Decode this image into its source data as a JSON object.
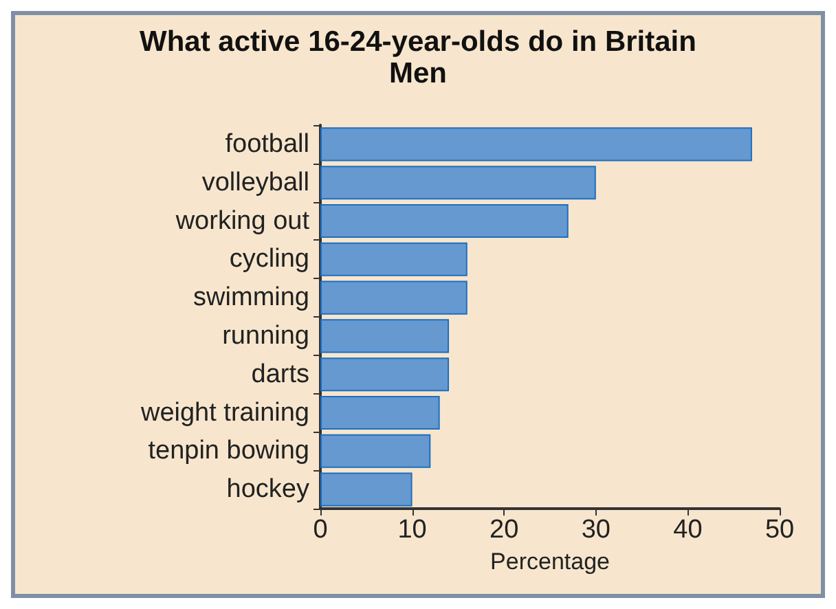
{
  "chart_data": {
    "type": "bar",
    "orientation": "horizontal",
    "title": "What active 16-24-year-olds do in Britain",
    "subtitle": "Men",
    "xlabel": "Percentage",
    "categories": [
      "football",
      "volleyball",
      "working out",
      "cycling",
      "swimming",
      "running",
      "darts",
      "weight training",
      "tenpin bowing",
      "hockey"
    ],
    "values": [
      47,
      30,
      27,
      16,
      16,
      14,
      14,
      13,
      12,
      10
    ],
    "color": "#6699d0",
    "xlim": [
      0,
      50
    ],
    "xticks": [
      0,
      10,
      20,
      30,
      40,
      50
    ],
    "grid": false
  }
}
